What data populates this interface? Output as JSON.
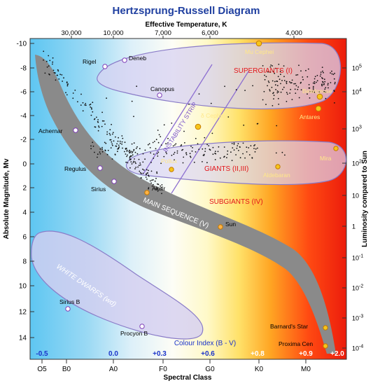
{
  "title": "Hertzsprung-Russell Diagram",
  "top_axis": {
    "label": "Effective Temperature, K",
    "ticks": [
      "30,000",
      "10,000",
      "7,000",
      "6,000",
      "4,000"
    ]
  },
  "bottom_axis": {
    "label": "Spectral Class",
    "ticks": [
      "O5",
      "B0",
      "A0",
      "F0",
      "G0",
      "K0",
      "M0"
    ]
  },
  "left_axis": {
    "label": "Absolute Magnitude, Mv",
    "ticks": [
      "-10",
      "-8",
      "-6",
      "-4",
      "-2",
      "0",
      "2",
      "4",
      "6",
      "8",
      "10",
      "12",
      "14"
    ]
  },
  "right_axis": {
    "label": "Luminosity compared to Sun",
    "ticks": [
      {
        "base": "10",
        "exp": "5"
      },
      {
        "base": "10",
        "exp": "4"
      },
      {
        "base": "10",
        "exp": "3"
      },
      {
        "base": "10",
        "exp": "2"
      },
      {
        "base": "10",
        "exp": ""
      },
      {
        "base": "1",
        "exp": ""
      },
      {
        "base": "10",
        "exp": "-1"
      },
      {
        "base": "10",
        "exp": "-2"
      },
      {
        "base": "10",
        "exp": "-3"
      },
      {
        "base": "10",
        "exp": "-4"
      }
    ]
  },
  "colour_index": {
    "label": "Colour Index (B - V)",
    "ticks": [
      "-0.5",
      "0.0",
      "+0.3",
      "+0.6",
      "+0.8",
      "+0.9",
      "+2.0"
    ]
  },
  "regions": {
    "supergiants": "SUPERGIANTS (I)",
    "giants": "GIANTS (II,III)",
    "subgiants": "SUBGIANTS (IV)",
    "main_sequence": "MAIN SEQUENCE (V)",
    "white_dwarfs": "WHITE DWARFS (wd)",
    "instability_strip": "INSTABILITY STRIP"
  },
  "stars": [
    {
      "name": "Rigel",
      "kind": "hot"
    },
    {
      "name": "Deneb",
      "kind": "hot"
    },
    {
      "name": "Canopus",
      "kind": "hot"
    },
    {
      "name": "Mu Cephei",
      "kind": "cool"
    },
    {
      "name": "Betelgeuse",
      "kind": "cool"
    },
    {
      "name": "Antares",
      "kind": "cool"
    },
    {
      "name": "δ Cephei",
      "kind": "cool"
    },
    {
      "name": "Achernar",
      "kind": "hot"
    },
    {
      "name": "Pollux",
      "kind": "cool"
    },
    {
      "name": "Mira",
      "kind": "cool"
    },
    {
      "name": "Aldebaran",
      "kind": "cool"
    },
    {
      "name": "Regulus",
      "kind": "hot"
    },
    {
      "name": "Sirius",
      "kind": "hot"
    },
    {
      "name": "Altair",
      "kind": "warm"
    },
    {
      "name": "Sun",
      "kind": "warm"
    },
    {
      "name": "Sirius B",
      "kind": "hot"
    },
    {
      "name": "Procyon B",
      "kind": "hot"
    },
    {
      "name": "Barnard's Star",
      "kind": "cool"
    },
    {
      "name": "Proxima Cen",
      "kind": "cool"
    }
  ],
  "colors": {
    "title": "#1f3fa0",
    "axis_text": "#000000",
    "region_red": "#e3151a",
    "region_white": "#ffffff",
    "instability": "#7d56c8",
    "colour_index_text": "#1a33c9",
    "main_sequence_band": "#888888",
    "star_cool": "#f6c51b",
    "star_hot": "#ffffff",
    "star_outline": "#7f3fb8"
  }
}
